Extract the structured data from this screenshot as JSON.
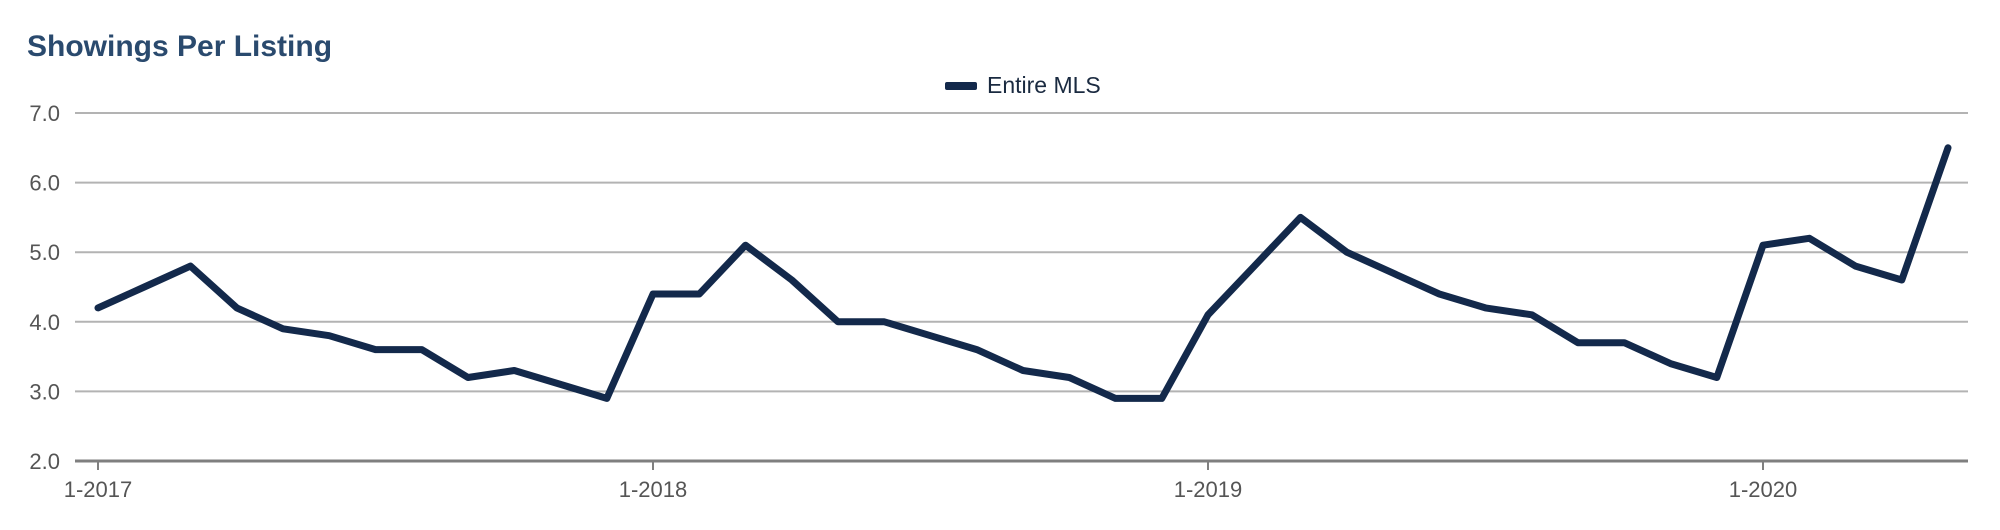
{
  "colors": {
    "title": "#2a4a6e",
    "series": "#13294b",
    "grid": "#b3b3b3",
    "axis": "#7f7f7f",
    "tick_text": "#555555"
  },
  "chart_data": {
    "type": "line",
    "title": "Showings Per Listing",
    "xlabel": "",
    "ylabel": "",
    "ylim": [
      2.0,
      7.0
    ],
    "y_ticks": [
      "7.0",
      "6.0",
      "5.0",
      "4.0",
      "3.0",
      "2.0"
    ],
    "x_tick_labels": [
      "1-2017",
      "1-2018",
      "1-2019",
      "1-2020"
    ],
    "grid": true,
    "legend": "top-center",
    "x": [
      "1-2017",
      "2-2017",
      "3-2017",
      "4-2017",
      "5-2017",
      "6-2017",
      "7-2017",
      "8-2017",
      "9-2017",
      "10-2017",
      "11-2017",
      "12-2017",
      "1-2018",
      "2-2018",
      "3-2018",
      "4-2018",
      "5-2018",
      "6-2018",
      "7-2018",
      "8-2018",
      "9-2018",
      "10-2018",
      "11-2018",
      "12-2018",
      "1-2019",
      "2-2019",
      "3-2019",
      "4-2019",
      "5-2019",
      "6-2019",
      "7-2019",
      "8-2019",
      "9-2019",
      "10-2019",
      "11-2019",
      "12-2019",
      "1-2020",
      "2-2020",
      "3-2020",
      "4-2020",
      "5-2020"
    ],
    "series": [
      {
        "name": "Entire MLS",
        "values": [
          4.2,
          4.5,
          4.8,
          4.2,
          3.9,
          3.8,
          3.6,
          3.6,
          3.2,
          3.3,
          3.1,
          2.9,
          4.4,
          4.4,
          5.1,
          4.6,
          4.0,
          4.0,
          3.8,
          3.6,
          3.3,
          3.2,
          2.9,
          2.9,
          4.1,
          4.8,
          5.5,
          5.0,
          4.7,
          4.4,
          4.2,
          4.1,
          3.7,
          3.7,
          3.4,
          3.2,
          5.1,
          5.2,
          4.8,
          4.6,
          6.5
        ]
      }
    ]
  }
}
